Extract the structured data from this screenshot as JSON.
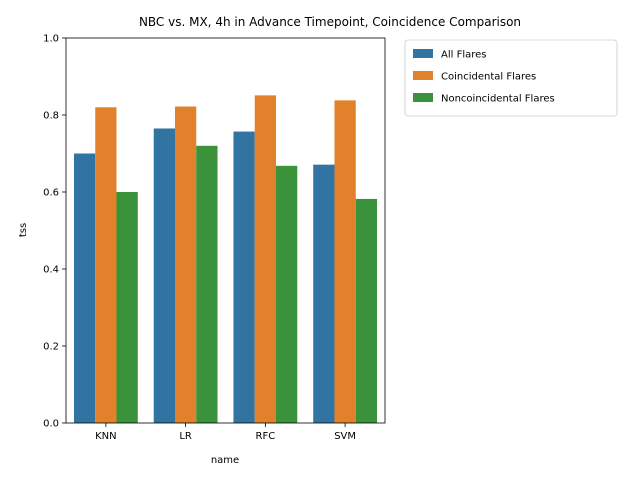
{
  "chart_data": {
    "type": "bar",
    "title": "NBC vs. MX, 4h in Advance Timepoint, Coincidence Comparison",
    "xlabel": "name",
    "ylabel": "tss",
    "ylim": [
      0,
      1.0
    ],
    "yticks": [
      "0.0",
      "0.2",
      "0.4",
      "0.6",
      "0.8",
      "1.0"
    ],
    "ytick_values": [
      0,
      0.2,
      0.4,
      0.6,
      0.8,
      1.0
    ],
    "categories": [
      "KNN",
      "LR",
      "RFC",
      "SVM"
    ],
    "grid": false,
    "legend_position": "outside top-right",
    "series": [
      {
        "name": "All Flares",
        "color": "#3274a1",
        "values": [
          0.7,
          0.765,
          0.757,
          0.671
        ]
      },
      {
        "name": "Coincidental Flares",
        "color": "#e1812c",
        "values": [
          0.82,
          0.822,
          0.851,
          0.838
        ]
      },
      {
        "name": "Noncoincidental Flares",
        "color": "#3a923a",
        "values": [
          0.6,
          0.72,
          0.668,
          0.582
        ]
      }
    ]
  }
}
